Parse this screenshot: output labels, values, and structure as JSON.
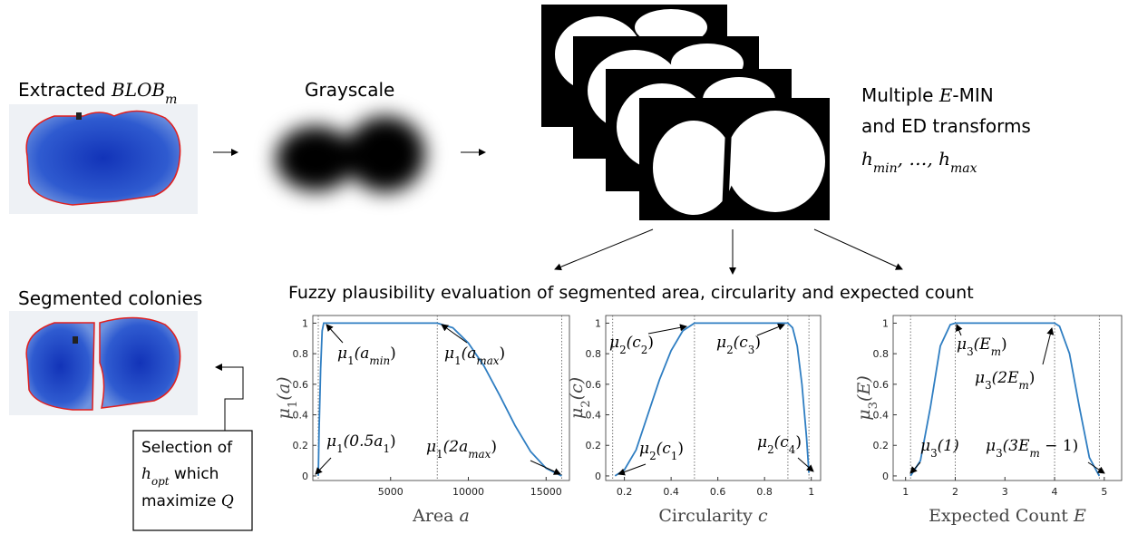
{
  "texts": {
    "extracted": [
      {
        "t": "Extracted "
      },
      {
        "t": "BLOB",
        "m": true
      },
      {
        "t": "m",
        "m": true,
        "s": true
      }
    ],
    "grayscale": [
      {
        "t": "Grayscale"
      }
    ],
    "transforms1": [
      {
        "t": "Multiple "
      },
      {
        "t": "E",
        "m": true
      },
      {
        "t": "-MIN"
      }
    ],
    "transforms2": [
      {
        "t": "and ED transforms"
      }
    ],
    "transforms3": [
      {
        "t": "h",
        "m": true
      },
      {
        "t": "min",
        "m": true,
        "s": true
      },
      {
        "t": ", …, ",
        "m": true
      },
      {
        "t": "h",
        "m": true
      },
      {
        "t": "max",
        "m": true,
        "s": true
      }
    ],
    "evaluation": [
      {
        "t": "Fuzzy plausibility evaluation of segmented area, circularity and expected count"
      }
    ],
    "segmented": [
      {
        "t": "Segmented colonies"
      }
    ],
    "selection1": [
      {
        "t": "Selection of"
      }
    ],
    "selection2": [
      {
        "t": "h",
        "m": true
      },
      {
        "t": "opt",
        "m": true,
        "s": true
      },
      {
        "t": " which"
      }
    ],
    "selection3": [
      {
        "t": "maximize "
      },
      {
        "t": "Q",
        "m": true
      }
    ]
  },
  "plots": [
    {
      "xlim": [
        0,
        16500
      ],
      "ylim": [
        -0.03,
        1.05
      ],
      "xticks": [
        5000,
        10000,
        15000
      ],
      "yticks": [
        0,
        0.2,
        0.4,
        0.6,
        0.8,
        1
      ],
      "color": "#2f7ec2",
      "xlabel": [
        {
          "t": "Area "
        },
        {
          "t": "a",
          "m": true
        }
      ],
      "ylabel": [
        {
          "t": "μ",
          "m": true
        },
        {
          "t": "1",
          "s": true
        },
        {
          "t": "(a)",
          "m": true
        }
      ],
      "refs": [
        350,
        8000,
        16000
      ],
      "x": [
        350,
        400,
        500,
        600,
        700,
        8000,
        9000,
        10000,
        11000,
        12000,
        13000,
        14000,
        15000,
        16000
      ],
      "y": [
        0,
        0.3,
        0.7,
        0.95,
        1,
        1,
        0.97,
        0.87,
        0.72,
        0.53,
        0.33,
        0.16,
        0.05,
        0
      ],
      "annotations": [
        [
          {
            "t": "μ",
            "m": true
          },
          {
            "t": "1",
            "s": true
          },
          {
            "t": "(a",
            "m": true
          },
          {
            "t": "min",
            "m": true,
            "s": true
          },
          {
            "t": ")"
          }
        ],
        [
          {
            "t": "μ",
            "m": true
          },
          {
            "t": "1",
            "s": true
          },
          {
            "t": "(a",
            "m": true
          },
          {
            "t": "max",
            "m": true,
            "s": true
          },
          {
            "t": ")"
          }
        ],
        [
          {
            "t": "μ",
            "m": true
          },
          {
            "t": "1",
            "s": true
          },
          {
            "t": "(0.5a",
            "m": true
          },
          {
            "t": "1",
            "s": true
          },
          {
            "t": ")"
          }
        ],
        [
          {
            "t": "μ",
            "m": true
          },
          {
            "t": "1",
            "s": true
          },
          {
            "t": "(2a",
            "m": true
          },
          {
            "t": "max",
            "m": true,
            "s": true
          },
          {
            "t": ")"
          }
        ]
      ]
    },
    {
      "xlim": [
        0.12,
        1.04
      ],
      "ylim": [
        -0.03,
        1.05
      ],
      "xticks": [
        0.2,
        0.4,
        0.6,
        0.8,
        1
      ],
      "yticks": [
        0,
        0.2,
        0.4,
        0.6,
        0.8,
        1
      ],
      "color": "#2f7ec2",
      "xlabel": [
        {
          "t": "Circularity "
        },
        {
          "t": "c",
          "m": true
        }
      ],
      "ylabel": [
        {
          "t": "μ",
          "m": true
        },
        {
          "t": "2",
          "s": true
        },
        {
          "t": "(c)",
          "m": true
        }
      ],
      "refs": [
        0.15,
        0.5,
        0.9,
        0.99
      ],
      "x": [
        0.16,
        0.2,
        0.25,
        0.3,
        0.35,
        0.4,
        0.45,
        0.5,
        0.9,
        0.92,
        0.94,
        0.96,
        0.98,
        0.99
      ],
      "y": [
        0,
        0.04,
        0.17,
        0.4,
        0.63,
        0.82,
        0.95,
        1,
        1,
        0.97,
        0.85,
        0.6,
        0.25,
        0.02
      ],
      "annotations": [
        [
          {
            "t": "μ",
            "m": true
          },
          {
            "t": "2",
            "s": true
          },
          {
            "t": "(c",
            "m": true
          },
          {
            "t": "2",
            "s": true
          },
          {
            "t": ")"
          }
        ],
        [
          {
            "t": "μ",
            "m": true
          },
          {
            "t": "2",
            "s": true
          },
          {
            "t": "(c",
            "m": true
          },
          {
            "t": "3",
            "s": true
          },
          {
            "t": ")"
          }
        ],
        [
          {
            "t": "μ",
            "m": true
          },
          {
            "t": "2",
            "s": true
          },
          {
            "t": "(c",
            "m": true
          },
          {
            "t": "1",
            "s": true
          },
          {
            "t": ")"
          }
        ],
        [
          {
            "t": "μ",
            "m": true
          },
          {
            "t": "2",
            "s": true
          },
          {
            "t": "(c",
            "m": true
          },
          {
            "t": "4",
            "s": true
          },
          {
            "t": ")"
          }
        ]
      ]
    },
    {
      "xlim": [
        0.75,
        5.35
      ],
      "ylim": [
        -0.03,
        1.05
      ],
      "xticks": [
        1,
        2,
        3,
        4,
        5
      ],
      "yticks": [
        0,
        0.2,
        0.4,
        0.6,
        0.8,
        1
      ],
      "color": "#2f7ec2",
      "xlabel": [
        {
          "t": "Expected Count "
        },
        {
          "t": "E",
          "m": true
        }
      ],
      "ylabel": [
        {
          "t": "μ",
          "m": true
        },
        {
          "t": "3",
          "s": true
        },
        {
          "t": "(E)",
          "m": true
        }
      ],
      "refs": [
        1.1,
        2,
        4,
        4.9
      ],
      "x": [
        1.1,
        1.3,
        1.5,
        1.7,
        1.9,
        2,
        4,
        4.1,
        4.3,
        4.5,
        4.7,
        4.9
      ],
      "y": [
        0,
        0.1,
        0.45,
        0.85,
        0.99,
        1,
        1,
        0.98,
        0.8,
        0.45,
        0.12,
        0
      ],
      "annotations": [
        [
          {
            "t": "μ",
            "m": true
          },
          {
            "t": "3",
            "s": true
          },
          {
            "t": "(E",
            "m": true
          },
          {
            "t": "m",
            "m": true,
            "s": true
          },
          {
            "t": ")"
          }
        ],
        [
          {
            "t": "μ",
            "m": true
          },
          {
            "t": "3",
            "s": true
          },
          {
            "t": "(2E",
            "m": true
          },
          {
            "t": "m",
            "m": true,
            "s": true
          },
          {
            "t": ")"
          }
        ],
        [
          {
            "t": "μ",
            "m": true
          },
          {
            "t": "3",
            "s": true
          },
          {
            "t": "(1)",
            "m": true
          }
        ],
        [
          {
            "t": "μ",
            "m": true
          },
          {
            "t": "3",
            "s": true
          },
          {
            "t": "(3E",
            "m": true
          },
          {
            "t": "m",
            "m": true,
            "s": true
          },
          {
            "t": " − 1)"
          }
        ]
      ]
    }
  ]
}
